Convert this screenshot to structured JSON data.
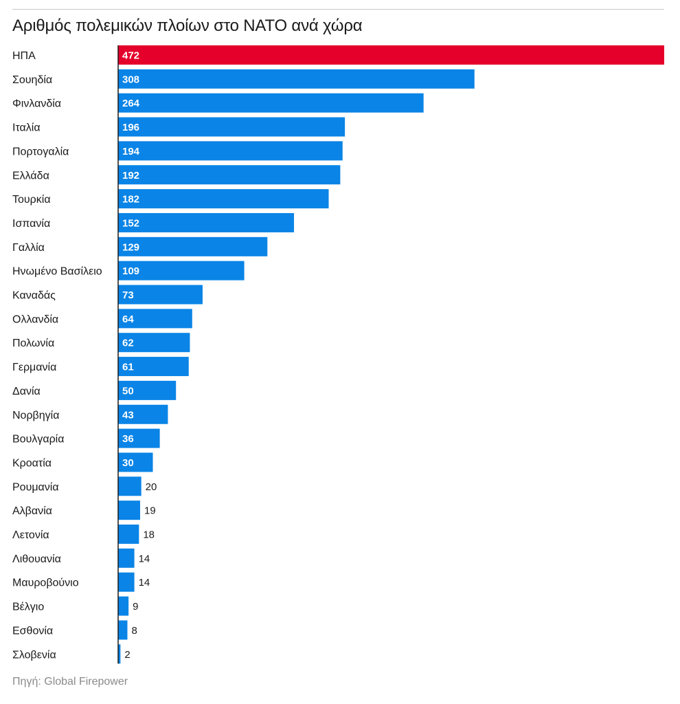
{
  "title": "Αριθμός πολεμικών πλοίων στο ΝΑΤΟ ανά χώρα",
  "source": "Πηγή: Global Firepower",
  "colors": {
    "highlight": "#e4002b",
    "bar": "#0a84e6",
    "axis": "#1a1a1a"
  },
  "chart_data": {
    "type": "bar",
    "orientation": "horizontal",
    "title": "Αριθμός πολεμικών πλοίων στο ΝΑΤΟ ανά χώρα",
    "categories": [
      "ΗΠΑ",
      "Σουηδία",
      "Φινλανδία",
      "Ιταλία",
      "Πορτογαλία",
      "Ελλάδα",
      "Τουρκία",
      "Ισπανία",
      "Γαλλία",
      "Ηνωμένο Βασίλειο",
      "Καναδάς",
      "Ολλανδία",
      "Πολωνία",
      "Γερμανία",
      "Δανία",
      "Νορβηγία",
      "Βουλγαρία",
      "Κροατία",
      "Ρουμανία",
      "Αλβανία",
      "Λετονία",
      "Λιθουανία",
      "Μαυροβούνιο",
      "Βέλγιο",
      "Εσθονία",
      "Σλοβενία"
    ],
    "values": [
      472,
      308,
      264,
      196,
      194,
      192,
      182,
      152,
      129,
      109,
      73,
      64,
      62,
      61,
      50,
      43,
      36,
      30,
      20,
      19,
      18,
      14,
      14,
      9,
      8,
      2
    ],
    "highlighted_category": "ΗΠΑ",
    "xlim": [
      0,
      472
    ],
    "grid": false,
    "legend": "none"
  }
}
